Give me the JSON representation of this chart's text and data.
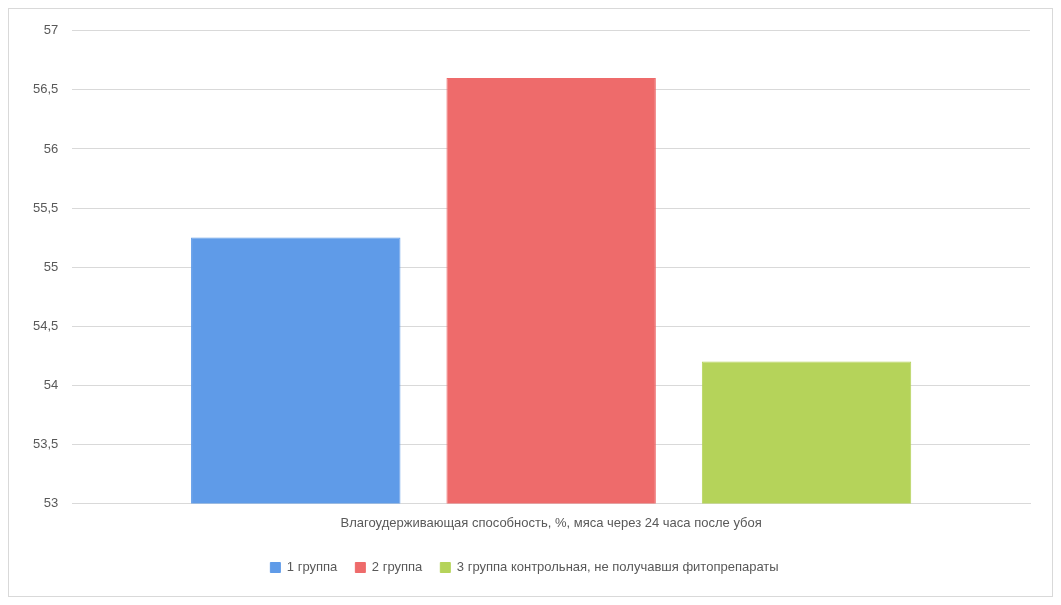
{
  "chart_data": {
    "type": "bar",
    "categories": [
      "Влагоудерживающая способность, %, мяса через 24 часа после убоя"
    ],
    "series": [
      {
        "name": "1 группа",
        "color": "#5f9be8",
        "values": [
          55.25
        ]
      },
      {
        "name": "2 группа",
        "color": "#ee6b6b",
        "values": [
          56.6
        ]
      },
      {
        "name": "3 группа контрольная, не получавшя фитопрепараты",
        "color": "#b5d35a",
        "values": [
          54.2
        ]
      }
    ],
    "ylim": [
      53,
      57
    ],
    "yticks": [
      53,
      {
        "value": 53.5,
        "label": "53,5"
      },
      54,
      {
        "value": 54.5,
        "label": "54,5"
      },
      55,
      {
        "value": 55.5,
        "label": "55,5"
      },
      56,
      {
        "value": 56.5,
        "label": "56,5"
      },
      57
    ],
    "grid": "y",
    "legend": "bottom"
  }
}
